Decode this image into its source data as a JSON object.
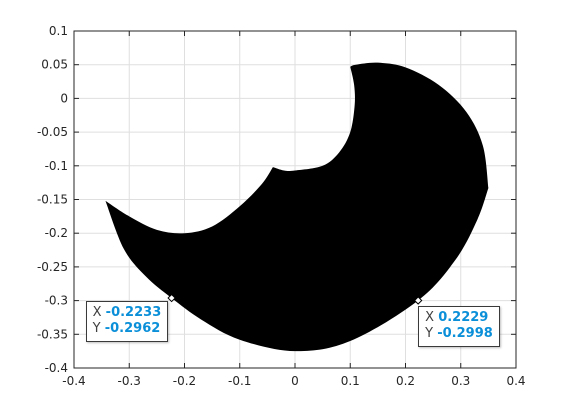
{
  "chart_data": {
    "type": "area",
    "title": "",
    "xlabel": "",
    "ylabel": "",
    "xlim": [
      -0.4,
      0.4
    ],
    "ylim": [
      -0.4,
      0.1
    ],
    "x_ticks": [
      "-0.4",
      "-0.3",
      "-0.2",
      "-0.1",
      "0",
      "0.1",
      "0.2",
      "0.3",
      "0.4"
    ],
    "y_ticks": [
      "0.1",
      "0.05",
      "0",
      "-0.05",
      "-0.1",
      "-0.15",
      "-0.2",
      "-0.25",
      "-0.3",
      "-0.35",
      "-0.4"
    ],
    "grid": true,
    "fill_color": "#000000",
    "shape": {
      "outer_arc": [
        [
          -0.343,
          -0.152
        ],
        [
          -0.31,
          -0.223
        ],
        [
          -0.27,
          -0.264
        ],
        [
          -0.2233,
          -0.2962
        ],
        [
          -0.17,
          -0.328
        ],
        [
          -0.1,
          -0.358
        ],
        [
          0.0,
          -0.375
        ],
        [
          0.1,
          -0.36
        ],
        [
          0.2229,
          -0.2998
        ],
        [
          0.29,
          -0.24
        ],
        [
          0.33,
          -0.18
        ],
        [
          0.35,
          -0.133
        ]
      ],
      "right_arc": [
        [
          0.35,
          -0.133
        ],
        [
          0.34,
          -0.07
        ],
        [
          0.31,
          -0.02
        ],
        [
          0.26,
          0.02
        ],
        [
          0.2,
          0.046
        ],
        [
          0.15,
          0.053
        ],
        [
          0.11,
          0.05
        ],
        [
          0.1,
          0.047
        ]
      ],
      "inner_notch": [
        [
          0.1,
          0.047
        ],
        [
          0.107,
          0.02
        ],
        [
          0.108,
          -0.01
        ],
        [
          0.1,
          -0.05
        ],
        [
          0.08,
          -0.08
        ],
        [
          0.05,
          -0.1
        ],
        [
          0.0,
          -0.107
        ],
        [
          -0.02,
          -0.107
        ],
        [
          -0.04,
          -0.102
        ]
      ],
      "left_notch": [
        [
          -0.04,
          -0.102
        ],
        [
          -0.06,
          -0.127
        ],
        [
          -0.1,
          -0.16
        ],
        [
          -0.15,
          -0.19
        ],
        [
          -0.2,
          -0.2
        ],
        [
          -0.25,
          -0.195
        ],
        [
          -0.3,
          -0.175
        ],
        [
          -0.343,
          -0.152
        ]
      ]
    },
    "datatips": [
      {
        "x_label": "X",
        "y_label": "Y",
        "x": "-0.2233",
        "y": "-0.2962",
        "xv": -0.2233,
        "yv": -0.2962
      },
      {
        "x_label": "X",
        "y_label": "Y",
        "x": "0.2229",
        "y": "-0.2998",
        "xv": 0.2229,
        "yv": -0.2998
      }
    ]
  },
  "colors": {
    "axis": "#262626",
    "grid": "#dfdfdf",
    "datatip_value": "#0a8fd8"
  }
}
